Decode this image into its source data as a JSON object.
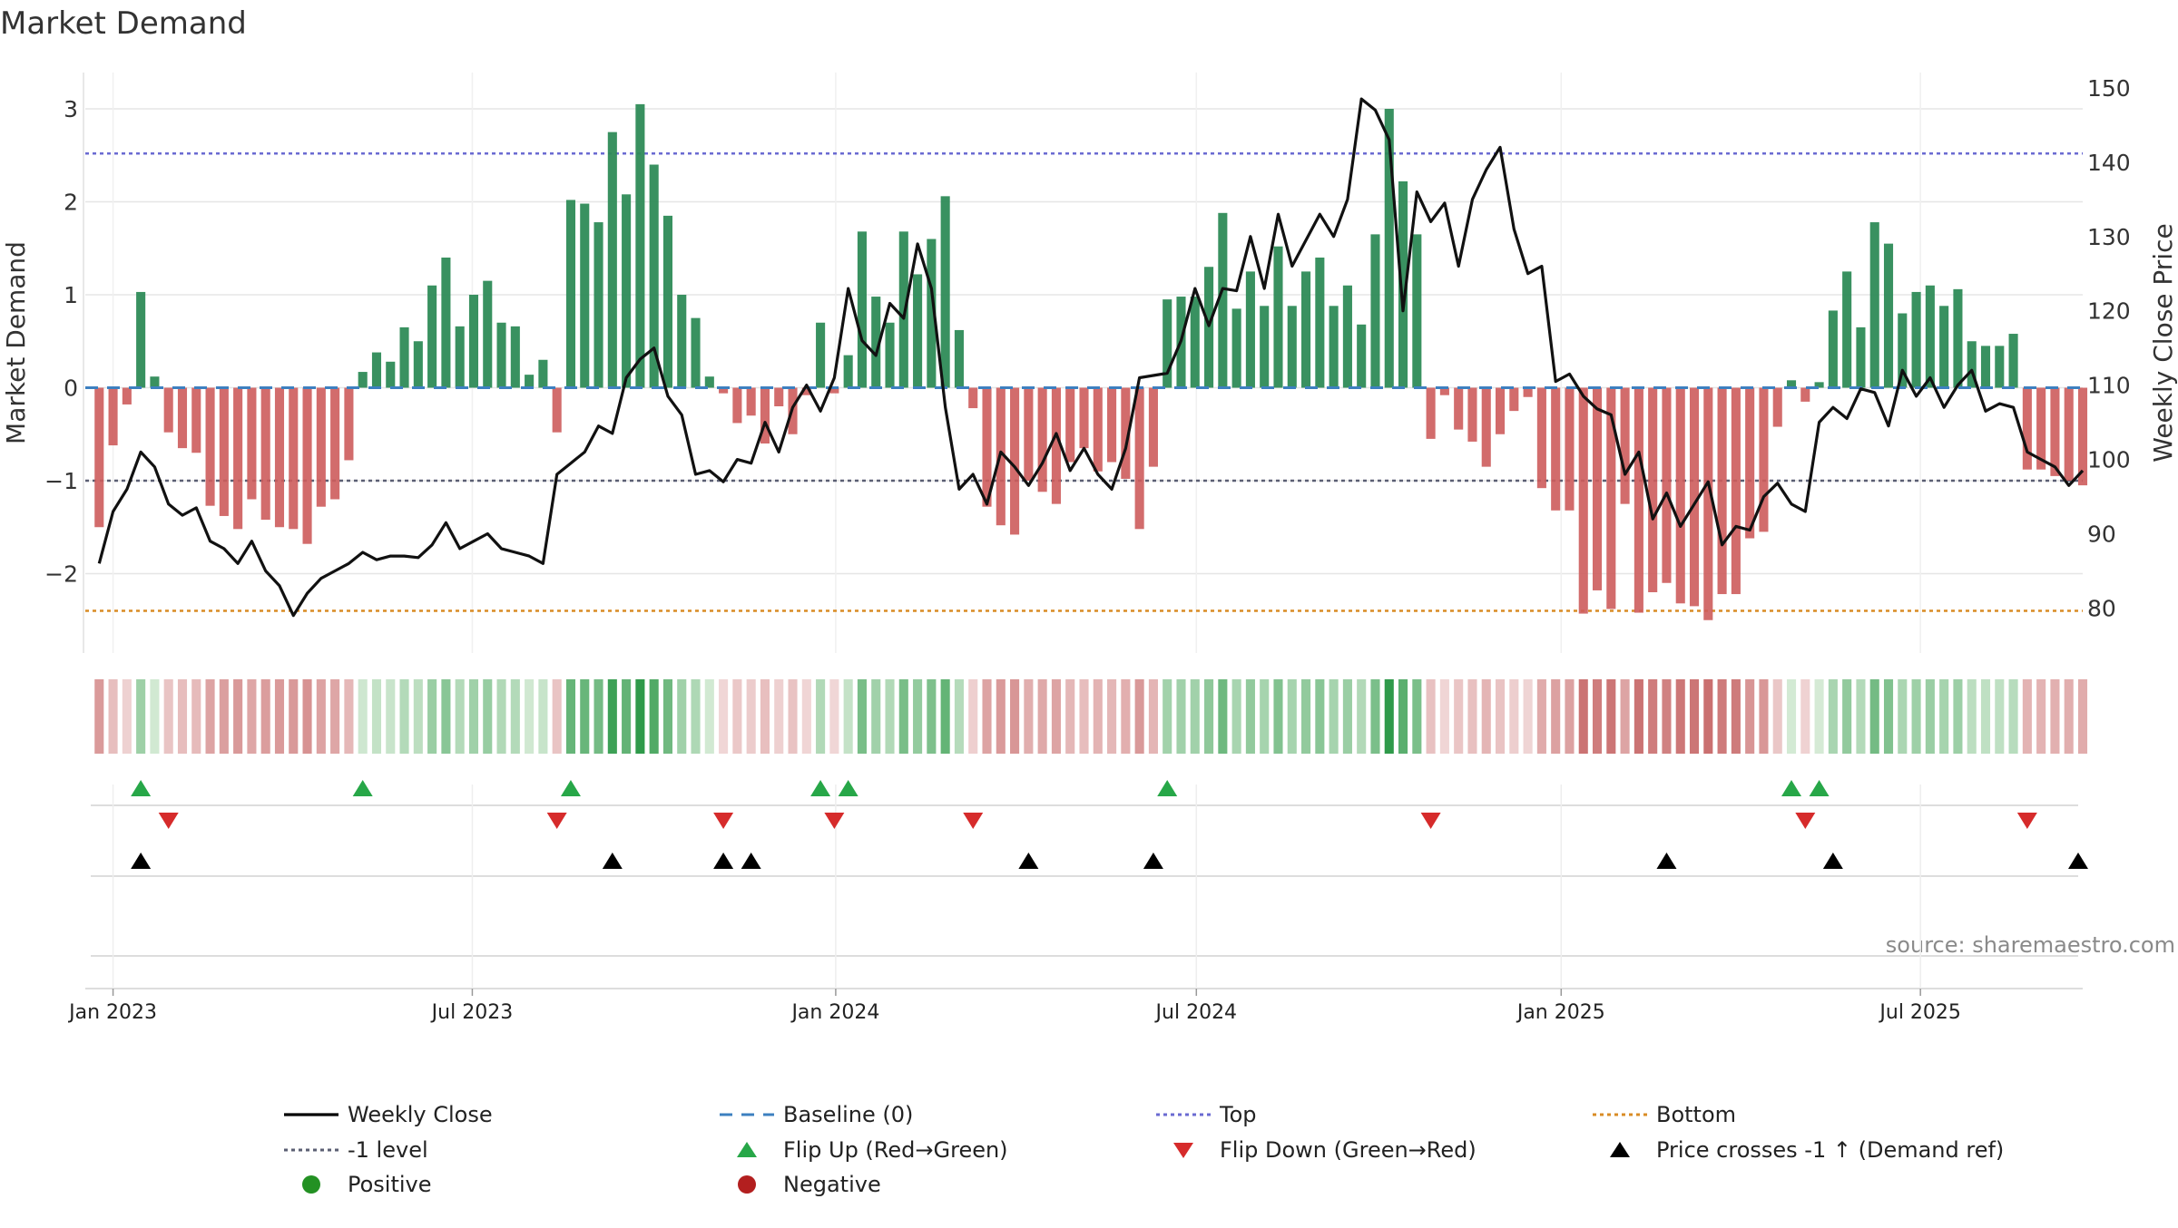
{
  "chart_data": {
    "type": "bar",
    "title": "Market Demand",
    "ylabel": "Market Demand",
    "y2label": "Weekly Close Price",
    "source": "source: sharemaestro.com",
    "ylim": [
      -2.75,
      3.2
    ],
    "y2lim": [
      77.5,
      151.5
    ],
    "yticks": [
      -2,
      -1,
      0,
      1,
      2,
      3
    ],
    "yticklabels": [
      "−2",
      "−1",
      "0",
      "1",
      "2",
      "3"
    ],
    "y2ticks": [
      80,
      90,
      100,
      110,
      120,
      130,
      140,
      150
    ],
    "y2ticklabels": [
      "80",
      "90",
      "100",
      "110",
      "120",
      "130",
      "140",
      "150"
    ],
    "x_start_week": -1,
    "x_end_week": 143,
    "xticks": [
      {
        "label": "Jan 2023",
        "week": 1.0
      },
      {
        "label": "Jul 2023",
        "week": 26.9
      },
      {
        "label": "Jan 2024",
        "week": 53.1
      },
      {
        "label": "Jul 2024",
        "week": 79.1
      },
      {
        "label": "Jan 2025",
        "week": 105.4
      },
      {
        "label": "Jul 2025",
        "week": 131.3
      }
    ],
    "reference_lines": {
      "top": 2.52,
      "minus_one": -1,
      "bottom": -2.4,
      "baseline": 0
    },
    "weeks": 144,
    "demand": [
      -1.5,
      -0.62,
      -0.18,
      1.03,
      0.12,
      -0.48,
      -0.65,
      -0.7,
      -1.27,
      -1.38,
      -1.52,
      -1.2,
      -1.42,
      -1.5,
      -1.52,
      -1.68,
      -1.28,
      -1.2,
      -0.78,
      0.17,
      0.38,
      0.28,
      0.65,
      0.5,
      1.1,
      1.4,
      0.66,
      1.0,
      1.15,
      0.7,
      0.66,
      0.14,
      0.3,
      -0.48,
      2.02,
      1.98,
      1.78,
      2.75,
      2.08,
      3.05,
      2.4,
      1.85,
      1.0,
      0.75,
      0.12,
      -0.06,
      -0.38,
      -0.3,
      -0.6,
      -0.2,
      -0.5,
      -0.08,
      0.7,
      -0.06,
      0.35,
      1.68,
      0.98,
      0.7,
      1.68,
      1.22,
      1.6,
      2.06,
      0.62,
      -0.22,
      -1.28,
      -1.48,
      -1.58,
      -1.0,
      -1.12,
      -1.25,
      -0.8,
      -0.65,
      -0.9,
      -0.8,
      -0.98,
      -1.52,
      -0.85,
      0.95,
      0.98,
      0.98,
      1.3,
      1.88,
      0.85,
      1.25,
      0.88,
      1.52,
      0.88,
      1.25,
      1.4,
      0.88,
      1.1,
      0.68,
      1.65,
      3.0,
      2.22,
      1.65,
      -0.55,
      -0.08,
      -0.45,
      -0.58,
      -0.85,
      -0.5,
      -0.25,
      -0.1,
      -1.08,
      -1.32,
      -1.32,
      -2.43,
      -2.18,
      -2.38,
      -1.25,
      -2.42,
      -2.2,
      -2.1,
      -2.32,
      -2.35,
      -2.5,
      -2.22,
      -2.22,
      -1.62,
      -1.55,
      -0.42,
      0.08,
      -0.15,
      0.06,
      0.83,
      1.25,
      0.65,
      1.78,
      1.55,
      0.8,
      1.03,
      1.1,
      0.88,
      1.06,
      0.5,
      0.45,
      0.45,
      0.58,
      -0.88,
      -0.88,
      -0.95,
      -1.0,
      -1.05
    ],
    "price": [
      86,
      93,
      96,
      101,
      99,
      94,
      92.5,
      93.5,
      89,
      88,
      86,
      89,
      85,
      83,
      79,
      82,
      84,
      85,
      86,
      87.5,
      86.5,
      87,
      87,
      86.8,
      88.5,
      91.5,
      88,
      89,
      90,
      88,
      87.5,
      87,
      86,
      98,
      99.5,
      101,
      104.5,
      103.5,
      111,
      113.5,
      115,
      108.5,
      106,
      98,
      98.5,
      97,
      100,
      99.5,
      105,
      101,
      107,
      110,
      106.5,
      111,
      123,
      116,
      114,
      121,
      119,
      129,
      123,
      107,
      96,
      98,
      94,
      101,
      99,
      96.5,
      99.5,
      103.5,
      98.5,
      101.5,
      98,
      96,
      101.5,
      111,
      111.3,
      111.6,
      116,
      123,
      118,
      123,
      122.7,
      130,
      123,
      133,
      126,
      129.5,
      133,
      130,
      135,
      148.5,
      147,
      143,
      120,
      136,
      132,
      134.5,
      126,
      135,
      139,
      142,
      131,
      125,
      126,
      110.5,
      111.5,
      108.5,
      106.8,
      106,
      98,
      101,
      92,
      95.5,
      91,
      94,
      97,
      88.5,
      91,
      90.5,
      95,
      96.8,
      94,
      93,
      105,
      107,
      105.5,
      109.5,
      109,
      104.5,
      112,
      108.5,
      111,
      107,
      110,
      112,
      106.5,
      107.5,
      107,
      101,
      100,
      99,
      96.5,
      98.5
    ],
    "flip_up": [
      3,
      19,
      34,
      52,
      54,
      77,
      122,
      124
    ],
    "flip_down": [
      5,
      33,
      45,
      53,
      63,
      96,
      123,
      139
    ],
    "price_cross": [
      3,
      37,
      45,
      47,
      67,
      76,
      113,
      125,
      145
    ],
    "legend": [
      {
        "label": "Weekly Close",
        "kind": "line",
        "color": "#000000"
      },
      {
        "label": "Baseline (0)",
        "kind": "dash",
        "color": "#3d80c0"
      },
      {
        "label": "Top",
        "kind": "dot",
        "color": "#6a6ad2"
      },
      {
        "label": "Bottom",
        "kind": "dot",
        "color": "#d98c25"
      },
      {
        "label": "-1 level",
        "kind": "dot",
        "color": "#5b5f73"
      },
      {
        "label": "Flip Up (Red→Green)",
        "kind": "tri-up",
        "color": "#27a748"
      },
      {
        "label": "Flip Down (Green→Red)",
        "kind": "tri-down",
        "color": "#d62b2b"
      },
      {
        "label": "Price crosses -1 ↑ (Demand ref)",
        "kind": "tri-up",
        "color": "#000000"
      },
      {
        "label": "Positive",
        "kind": "circle",
        "color": "#239123"
      },
      {
        "label": "Negative",
        "kind": "circle",
        "color": "#b31f1f"
      }
    ],
    "colors": {
      "positive_bar": "#2e8b57",
      "negative_bar": "#cd5c5c",
      "price_line": "#111111",
      "grid": "#e6e6e6",
      "axis_text": "#333333",
      "source_text": "#8a8a8a"
    }
  }
}
